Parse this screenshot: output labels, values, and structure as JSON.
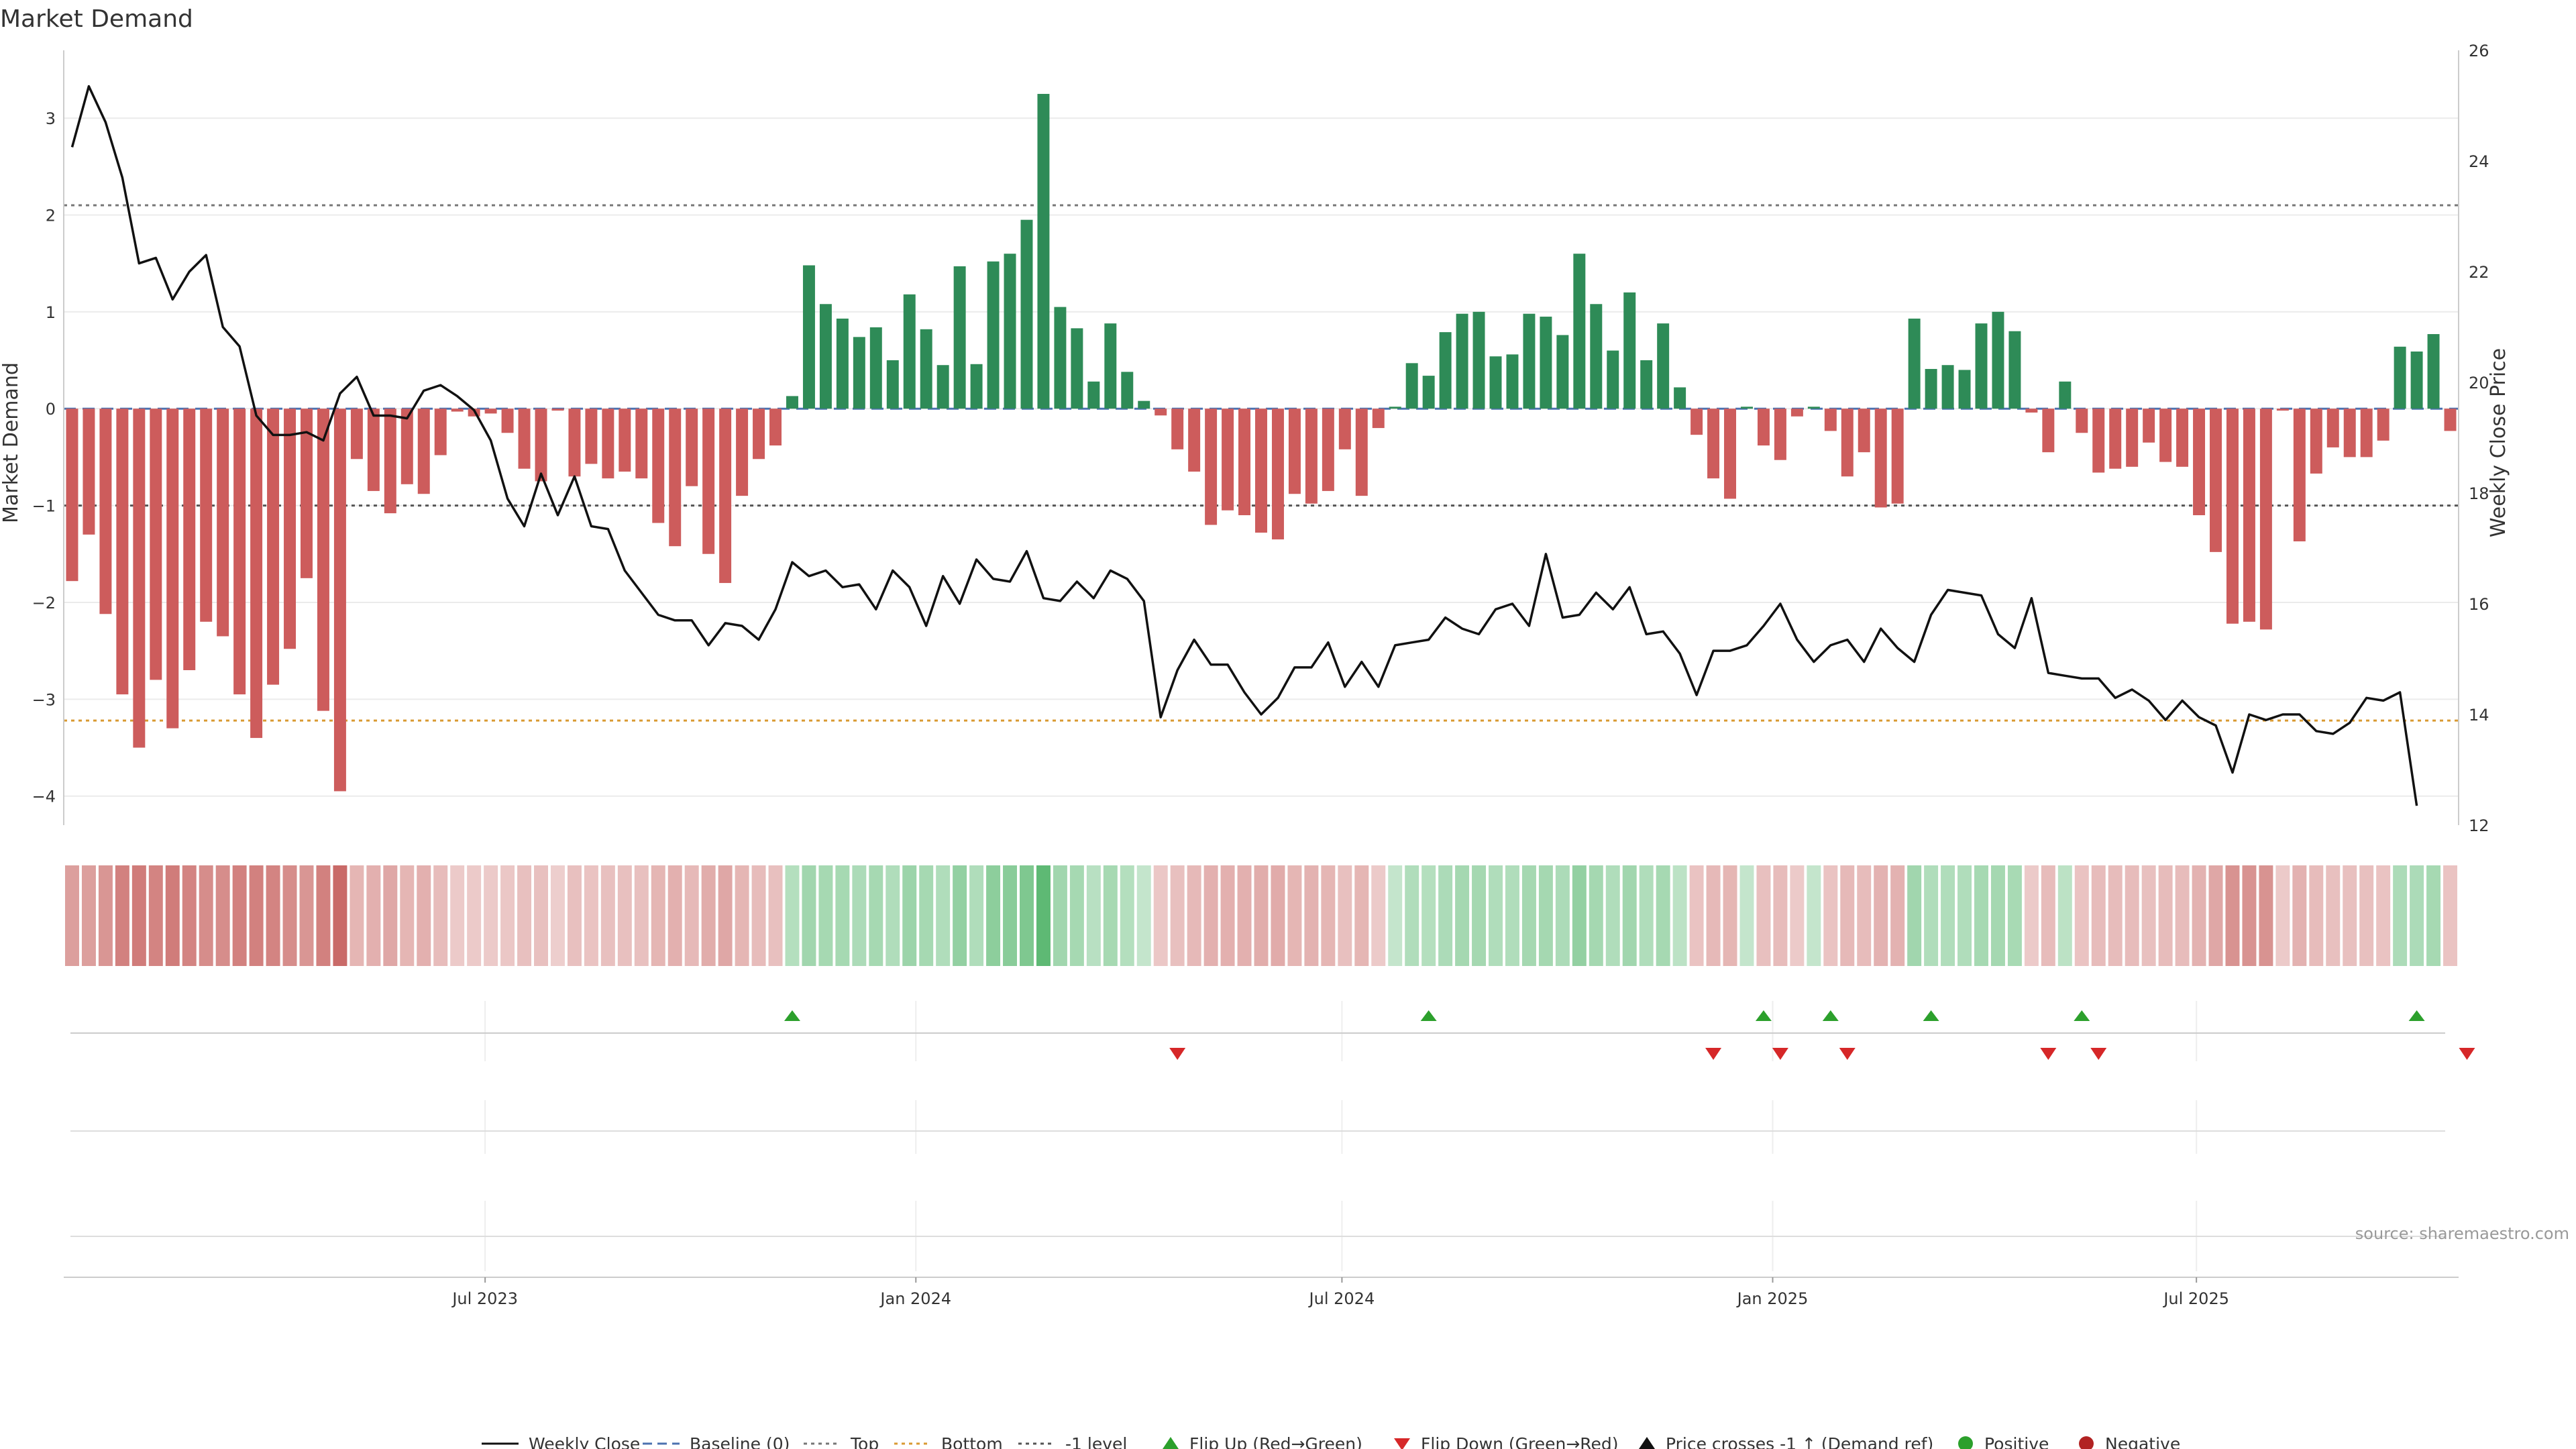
{
  "chart_data": {
    "type": "bar",
    "title": "Market Demand",
    "ylabel_left": "Market Demand",
    "ylabel_right": "Weekly Close Price",
    "source_text": "source: sharemaestro.com",
    "ylim_left": [
      -4.3,
      3.7
    ],
    "ylim_right": [
      12,
      26
    ],
    "yticks_left": [
      3,
      2,
      1,
      0,
      -1,
      -2,
      -3,
      -4
    ],
    "ytick_labels_left": [
      "3",
      "2",
      "1",
      "0",
      "−1",
      "−2",
      "−3",
      "−4"
    ],
    "yticks_right": [
      26,
      24,
      22,
      20,
      18,
      16,
      14,
      12
    ],
    "ytick_labels_right": [
      "26",
      "24",
      "22",
      "20",
      "18",
      "16",
      "14",
      "12"
    ],
    "x_start": "2023-01-02",
    "x_end": "2025-10-21",
    "x_ticks": [
      {
        "date": "2023-07-01",
        "label": "Jul 2023"
      },
      {
        "date": "2024-01-01",
        "label": "Jan 2024"
      },
      {
        "date": "2024-07-01",
        "label": "Jul 2024"
      },
      {
        "date": "2025-01-01",
        "label": "Jan 2025"
      },
      {
        "date": "2025-07-01",
        "label": "Jul 2025"
      }
    ],
    "reference_lines": {
      "top": 2.1,
      "minus_one_level": -1.0,
      "bottom": -3.22,
      "baseline": 0
    },
    "demand": [
      -1.78,
      -1.3,
      -2.12,
      -2.95,
      -3.5,
      -2.8,
      -3.3,
      -2.7,
      -2.2,
      -2.35,
      -2.95,
      -3.4,
      -2.85,
      -2.48,
      -1.75,
      -3.12,
      -3.95,
      -0.52,
      -0.85,
      -1.08,
      -0.78,
      -0.88,
      -0.48,
      -0.03,
      -0.08,
      -0.05,
      -0.25,
      -0.62,
      -0.75,
      -0.02,
      -0.7,
      -0.57,
      -0.72,
      -0.65,
      -0.72,
      -1.18,
      -1.42,
      -0.8,
      -1.5,
      -1.8,
      -0.9,
      -0.52,
      -0.38,
      0.13,
      1.48,
      1.08,
      0.93,
      0.74,
      0.84,
      0.5,
      1.18,
      0.82,
      0.45,
      1.47,
      0.46,
      1.52,
      1.6,
      1.95,
      3.25,
      1.05,
      0.83,
      0.28,
      0.88,
      0.38,
      0.08,
      -0.07,
      -0.42,
      -0.65,
      -1.2,
      -1.05,
      -1.1,
      -1.28,
      -1.35,
      -0.88,
      -0.98,
      -0.85,
      -0.42,
      -0.9,
      -0.2,
      0.02,
      0.47,
      0.34,
      0.79,
      0.98,
      1.0,
      0.54,
      0.56,
      0.98,
      0.95,
      0.76,
      1.6,
      1.08,
      0.6,
      1.2,
      0.5,
      0.88,
      0.22,
      -0.27,
      -0.72,
      -0.93,
      0.02,
      -0.38,
      -0.53,
      -0.08,
      0.02,
      -0.23,
      -0.7,
      -0.45,
      -1.02,
      -0.98,
      0.93,
      0.41,
      0.45,
      0.4,
      0.88,
      1.0,
      0.8,
      -0.04,
      -0.45,
      0.28,
      -0.25,
      -0.66,
      -0.62,
      -0.6,
      -0.35,
      -0.55,
      -0.6,
      -1.1,
      -1.48,
      -2.22,
      -2.2,
      -2.28,
      -0.02,
      -1.37,
      -0.67,
      -0.4,
      -0.5,
      -0.5,
      -0.33,
      0.64,
      0.59,
      0.77,
      -0.23
    ],
    "close": [
      24.25,
      25.35,
      24.7,
      23.7,
      22.15,
      22.25,
      21.5,
      22.0,
      22.3,
      21.0,
      20.65,
      19.4,
      19.05,
      19.05,
      19.1,
      18.95,
      19.8,
      20.1,
      19.4,
      19.4,
      19.35,
      19.85,
      19.95,
      19.75,
      19.5,
      18.95,
      17.9,
      17.4,
      18.35,
      17.6,
      18.3,
      17.4,
      17.35,
      16.6,
      16.2,
      15.8,
      15.7,
      15.7,
      15.25,
      15.65,
      15.6,
      15.35,
      15.9,
      16.75,
      16.5,
      16.6,
      16.3,
      16.35,
      15.9,
      16.6,
      16.3,
      15.6,
      16.5,
      16.0,
      16.8,
      16.45,
      16.4,
      16.95,
      16.1,
      16.05,
      16.4,
      16.1,
      16.6,
      16.45,
      16.05,
      13.95,
      14.8,
      15.35,
      14.9,
      14.9,
      14.4,
      14.0,
      14.3,
      14.85,
      14.85,
      15.3,
      14.5,
      14.95,
      14.5,
      15.25,
      15.3,
      15.35,
      15.75,
      15.55,
      15.45,
      15.9,
      16.0,
      15.6,
      16.9,
      15.75,
      15.8,
      16.2,
      15.9,
      16.3,
      15.45,
      15.5,
      15.1,
      14.35,
      15.15,
      15.15,
      15.25,
      15.6,
      16.0,
      15.35,
      14.95,
      15.25,
      15.35,
      14.95,
      15.55,
      15.2,
      14.95,
      15.8,
      16.25,
      16.2,
      16.15,
      15.45,
      15.2,
      16.1,
      14.75,
      14.7,
      14.65,
      14.65,
      14.3,
      14.45,
      14.25,
      13.9,
      14.25,
      13.95,
      13.8,
      12.95,
      14.0,
      13.9,
      14.0,
      14.0,
      13.7,
      13.65,
      13.85,
      14.3,
      14.25,
      14.4,
      12.35
    ],
    "strip_opacity": [
      0.55,
      0.55,
      0.6,
      0.72,
      0.75,
      0.7,
      0.75,
      0.7,
      0.65,
      0.65,
      0.72,
      0.72,
      0.7,
      0.65,
      0.6,
      0.72,
      0.85,
      0.42,
      0.45,
      0.5,
      0.42,
      0.45,
      0.38,
      0.3,
      0.3,
      0.3,
      0.32,
      0.36,
      0.36,
      0.28,
      0.36,
      0.34,
      0.36,
      0.36,
      0.36,
      0.42,
      0.45,
      0.4,
      0.47,
      0.5,
      0.42,
      0.38,
      0.36,
      0.38,
      0.48,
      0.45,
      0.45,
      0.42,
      0.45,
      0.4,
      0.5,
      0.45,
      0.4,
      0.55,
      0.4,
      0.58,
      0.6,
      0.65,
      0.82,
      0.48,
      0.45,
      0.36,
      0.45,
      0.38,
      0.3,
      0.32,
      0.36,
      0.4,
      0.45,
      0.45,
      0.45,
      0.47,
      0.48,
      0.42,
      0.44,
      0.42,
      0.36,
      0.42,
      0.3,
      0.3,
      0.4,
      0.38,
      0.42,
      0.46,
      0.46,
      0.4,
      0.4,
      0.46,
      0.46,
      0.42,
      0.55,
      0.46,
      0.4,
      0.48,
      0.4,
      0.45,
      0.34,
      0.34,
      0.4,
      0.42,
      0.3,
      0.36,
      0.38,
      0.3,
      0.3,
      0.34,
      0.4,
      0.38,
      0.44,
      0.44,
      0.48,
      0.4,
      0.4,
      0.4,
      0.45,
      0.46,
      0.44,
      0.3,
      0.38,
      0.34,
      0.34,
      0.38,
      0.38,
      0.38,
      0.36,
      0.38,
      0.38,
      0.44,
      0.5,
      0.62,
      0.62,
      0.62,
      0.3,
      0.44,
      0.38,
      0.36,
      0.36,
      0.36,
      0.34,
      0.42,
      0.42,
      0.45,
      0.34
    ],
    "flip_up_weeks": [
      43,
      81,
      101,
      105,
      111,
      120,
      140
    ],
    "flip_down_weeks": [
      66,
      98,
      102,
      106,
      118,
      121,
      143
    ],
    "legend": [
      {
        "label": "Weekly Close",
        "kind": "line-solid",
        "color": "#111111"
      },
      {
        "label": "Baseline (0)",
        "kind": "line-dash",
        "color": "#4c72b0"
      },
      {
        "label": "Top",
        "kind": "line-dot",
        "color": "#777777"
      },
      {
        "label": "Bottom",
        "kind": "line-dot",
        "color": "#d99a33"
      },
      {
        "label": "-1 level",
        "kind": "line-dot",
        "color": "#555555"
      },
      {
        "label": "Flip Up (Red→Green)",
        "kind": "tri-up",
        "color": "#2ca02c"
      },
      {
        "label": "Flip Down (Green→Red)",
        "kind": "tri-down",
        "color": "#d62728"
      },
      {
        "label": "Price crosses -1 ↑ (Demand ref)",
        "kind": "tri-up",
        "color": "#111111"
      },
      {
        "label": "Positive",
        "kind": "dot",
        "color": "#2ca02c"
      },
      {
        "label": "Negative",
        "kind": "dot",
        "color": "#b22222"
      }
    ],
    "colors": {
      "positive_bar": "#2e8b57",
      "negative_bar": "#cd5c5c",
      "strip_positive": "#3aaa55",
      "strip_negative": "#c0504d",
      "flip_up": "#2ca02c",
      "flip_down": "#d62728",
      "price_line": "#111111",
      "top_line": "#777777",
      "minus_one_line": "#555555",
      "bottom_line": "#d99a33",
      "baseline": "#4c72b0"
    }
  }
}
